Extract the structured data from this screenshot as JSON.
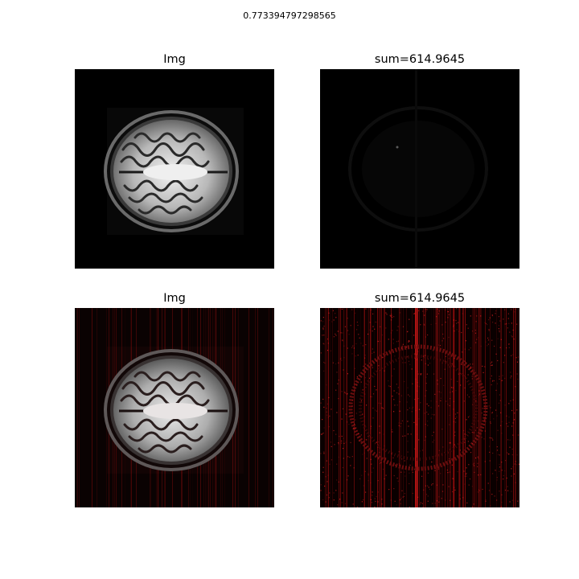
{
  "figure": {
    "suptitle": "0.773394797298565",
    "panels": [
      {
        "title": "Img",
        "content": "brain MRI axial slice, grayscale"
      },
      {
        "title": "sum=614.9645",
        "content": "error map, near-black"
      },
      {
        "title": "Img",
        "content": "brain MRI axial slice with red overlay"
      },
      {
        "title": "sum=614.9645",
        "content": "error map, red noise with brain outline"
      }
    ]
  },
  "colors": {
    "background": "#000000",
    "overlay_red": "#cc1010",
    "brain_gray": "#d8d8d8"
  }
}
